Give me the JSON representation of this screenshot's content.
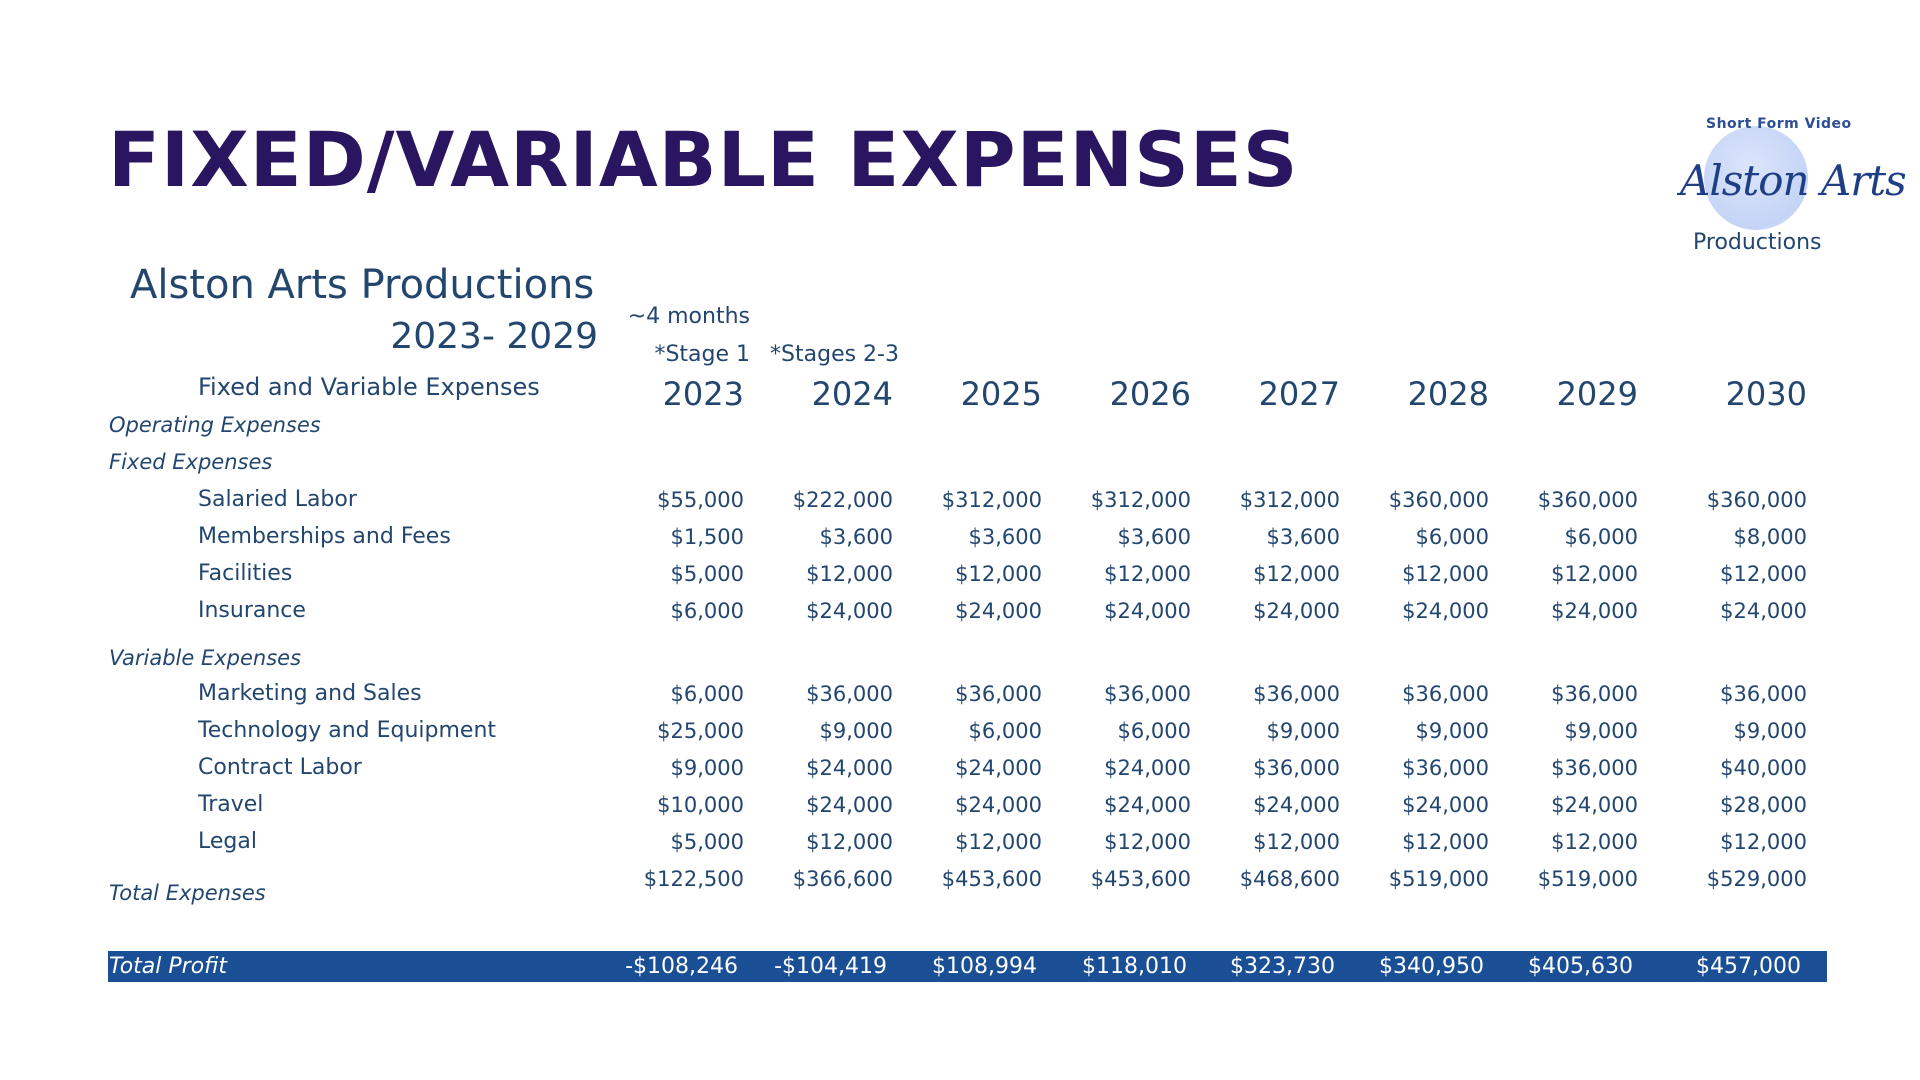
{
  "title": "FIXED/VARIABLE EXPENSES",
  "company": "Alston Arts Productions",
  "year_range": "2023- 2029",
  "subtitle": "Fixed and Variable Expenses",
  "notes": {
    "months": "~4 months",
    "stage1": "*Stage 1",
    "stages23": "*Stages 2-3"
  },
  "logo": {
    "line1": "Short Form Video",
    "script": "Alston Arts",
    "line2": "Productions",
    "colors": {
      "circle": "#c5d4f6",
      "script": "#1e3f86"
    }
  },
  "years": [
    "2023",
    "2024",
    "2025",
    "2026",
    "2027",
    "2028",
    "2029",
    "2030"
  ],
  "sections": {
    "operating": "Operating Expenses",
    "fixed": "Fixed Expenses",
    "variable": "Variable Expenses",
    "total_expenses": "Total Expenses",
    "total_profit": "Total Profit"
  },
  "fixed_rows": [
    {
      "label": "Salaried Labor",
      "values": [
        "$55,000",
        "$222,000",
        "$312,000",
        "$312,000",
        "$312,000",
        "$360,000",
        "$360,000",
        "$360,000"
      ]
    },
    {
      "label": "Memberships and Fees",
      "values": [
        "$1,500",
        "$3,600",
        "$3,600",
        "$3,600",
        "$3,600",
        "$6,000",
        "$6,000",
        "$8,000"
      ]
    },
    {
      "label": "Facilities",
      "values": [
        "$5,000",
        "$12,000",
        "$12,000",
        "$12,000",
        "$12,000",
        "$12,000",
        "$12,000",
        "$12,000"
      ]
    },
    {
      "label": "Insurance",
      "values": [
        "$6,000",
        "$24,000",
        "$24,000",
        "$24,000",
        "$24,000",
        "$24,000",
        "$24,000",
        "$24,000"
      ]
    }
  ],
  "variable_rows": [
    {
      "label": "Marketing and Sales",
      "values": [
        "$6,000",
        "$36,000",
        "$36,000",
        "$36,000",
        "$36,000",
        "$36,000",
        "$36,000",
        "$36,000"
      ]
    },
    {
      "label": "Technology and Equipment",
      "values": [
        "$25,000",
        "$9,000",
        "$6,000",
        "$6,000",
        "$9,000",
        "$9,000",
        "$9,000",
        "$9,000"
      ]
    },
    {
      "label": "Contract Labor",
      "values": [
        "$9,000",
        "$24,000",
        "$24,000",
        "$24,000",
        "$36,000",
        "$36,000",
        "$36,000",
        "$40,000"
      ]
    },
    {
      "label": "Travel",
      "values": [
        "$10,000",
        "$24,000",
        "$24,000",
        "$24,000",
        "$24,000",
        "$24,000",
        "$24,000",
        "$28,000"
      ]
    },
    {
      "label": "Legal",
      "values": [
        "$5,000",
        "$12,000",
        "$12,000",
        "$12,000",
        "$12,000",
        "$12,000",
        "$12,000",
        "$12,000"
      ]
    }
  ],
  "total_expenses": [
    "$122,500",
    "$366,600",
    "$453,600",
    "$453,600",
    "$468,600",
    "$519,000",
    "$519,000",
    "$529,000"
  ],
  "total_profit": [
    "-$108,246",
    "-$104,419",
    "$108,994",
    "$118,010",
    "$323,730",
    "$340,950",
    "$405,630",
    "$457,000"
  ],
  "colors": {
    "title": "#2a1660",
    "text": "#23466f",
    "profit_bar": "#1a4f96"
  }
}
